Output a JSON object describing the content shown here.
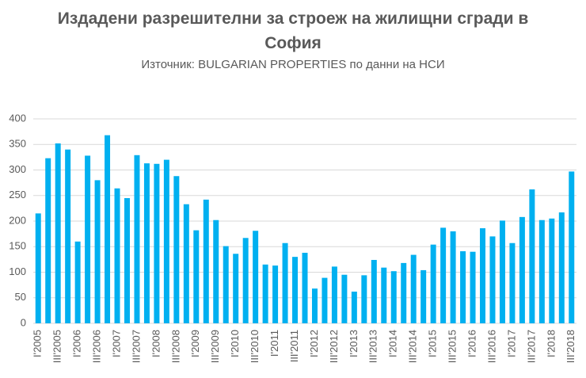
{
  "chart_data": {
    "type": "bar",
    "title": "Издадени разрешителни за строеж на жилищни сгради в София",
    "subtitle": "Източник: BULGARIAN PROPERTIES по данни на НСИ",
    "categories": [
      "I'2005",
      null,
      "III'2005",
      null,
      "I'2006",
      null,
      "III'2006",
      null,
      "I'2007",
      null,
      "III'2007",
      null,
      "I'2008",
      null,
      "III'2008",
      null,
      "I'2009",
      null,
      "III'2009",
      null,
      "I'2010",
      null,
      "III'2010",
      null,
      "I'2011",
      null,
      "III'2011",
      null,
      "I'2012",
      null,
      "III'2012",
      null,
      "I'2013",
      null,
      "III'2013",
      null,
      "I'2014",
      null,
      "III'2014",
      null,
      "I'2015",
      null,
      "III'2015",
      null,
      "I'2016",
      null,
      "III'2016",
      null,
      "I'2017",
      null,
      "III'2017",
      null,
      "I'2018",
      null,
      "III'2018"
    ],
    "values": [
      215,
      323,
      352,
      340,
      160,
      328,
      280,
      368,
      264,
      245,
      329,
      313,
      312,
      320,
      288,
      233,
      182,
      242,
      202,
      151,
      136,
      167,
      181,
      115,
      113,
      157,
      130,
      138,
      68,
      89,
      111,
      95,
      62,
      94,
      124,
      109,
      102,
      118,
      134,
      104,
      154,
      187,
      180,
      141,
      140,
      186,
      170,
      201,
      157,
      208,
      262,
      202,
      205,
      217,
      297
    ],
    "color": "#00b0f0",
    "ylim": [
      0,
      400
    ],
    "yticks": [
      0,
      50,
      100,
      150,
      200,
      250,
      300,
      350,
      400
    ],
    "grid": true
  }
}
